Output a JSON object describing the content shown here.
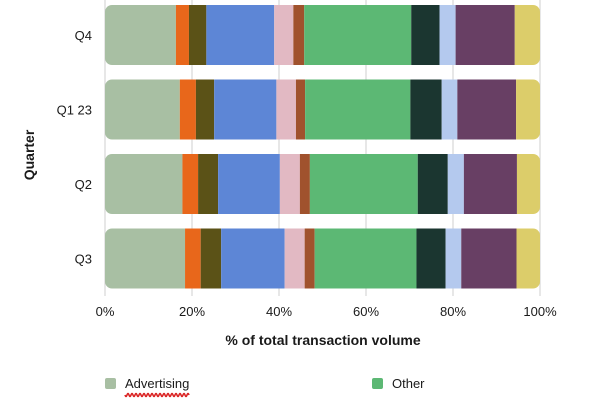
{
  "chart_data": {
    "type": "bar",
    "orientation": "horizontal",
    "stacked": true,
    "normalized": true,
    "categories": [
      "Q4",
      "Q1 23",
      "Q2",
      "Q3"
    ],
    "xlabel": "% of total transaction volume",
    "ylabel": "Quarter",
    "xlim": [
      0,
      100
    ],
    "xticks": [
      "0%",
      "20%",
      "40%",
      "60%",
      "80%",
      "100%"
    ],
    "grid": "vertical",
    "legend_position": "bottom",
    "series": [
      {
        "name": "Advertising",
        "color": "#a8bfa3",
        "values": [
          16.3,
          17.2,
          17.8,
          18.4
        ]
      },
      {
        "color": "#e8671b",
        "values": [
          3.0,
          3.7,
          3.6,
          3.6
        ]
      },
      {
        "color": "#5b5217",
        "values": [
          4.0,
          4.2,
          4.6,
          4.7
        ]
      },
      {
        "color": "#5d86d6",
        "values": [
          15.6,
          14.3,
          14.2,
          14.6
        ]
      },
      {
        "color": "#e2b9c3",
        "values": [
          4.4,
          4.5,
          4.6,
          4.6
        ]
      },
      {
        "color": "#a0522d",
        "values": [
          2.5,
          2.1,
          2.3,
          2.3
        ]
      },
      {
        "name": "Other",
        "color": "#5cb874",
        "values": [
          24.6,
          24.2,
          24.8,
          23.4
        ]
      },
      {
        "color": "#1b3630",
        "values": [
          6.5,
          7.2,
          6.9,
          6.7
        ]
      },
      {
        "color": "#b4c9ee",
        "values": [
          3.7,
          3.6,
          3.7,
          3.6
        ]
      },
      {
        "color": "#683f64",
        "values": [
          13.6,
          13.5,
          12.2,
          12.7
        ]
      },
      {
        "color": "#dccd6a",
        "values": [
          5.8,
          5.5,
          5.3,
          5.4
        ]
      }
    ]
  }
}
